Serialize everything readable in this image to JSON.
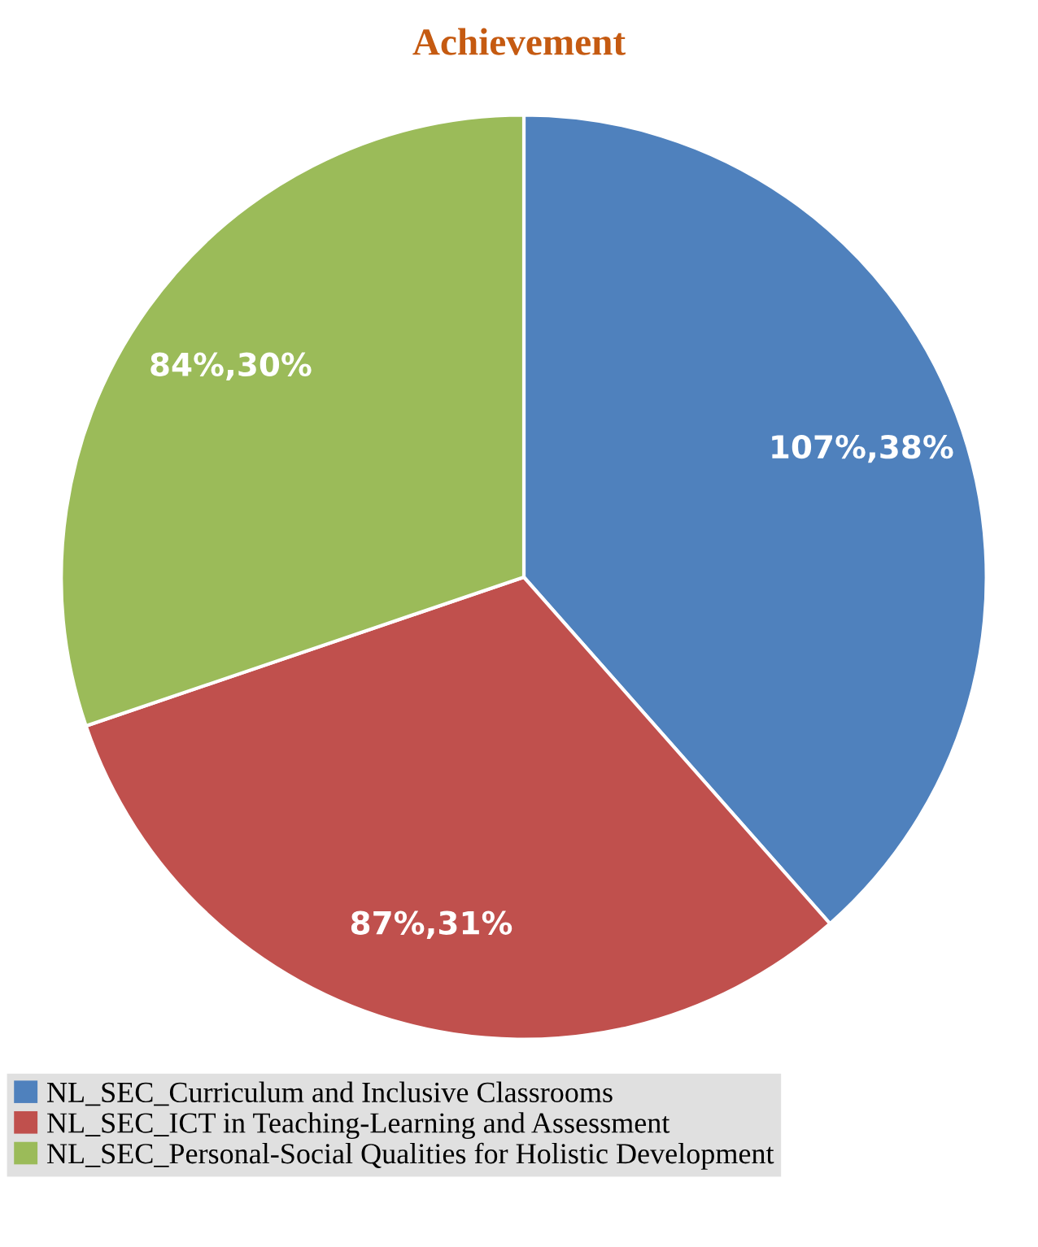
{
  "chart_data": {
    "type": "pie",
    "title": "Achievement",
    "categories": [
      "NL_SEC_Curriculum and Inclusive Classrooms",
      "NL_SEC_ICT in Teaching-Learning and Assessment",
      "NL_SEC_Personal-Social Qualities for Holistic Development"
    ],
    "values": [
      107,
      87,
      84
    ],
    "colors": [
      "#4f81bd",
      "#c0504d",
      "#9bbb59"
    ],
    "value_labels": [
      "107%,38%",
      "87%,31%",
      "84%,30%"
    ],
    "legend": "bottom"
  }
}
